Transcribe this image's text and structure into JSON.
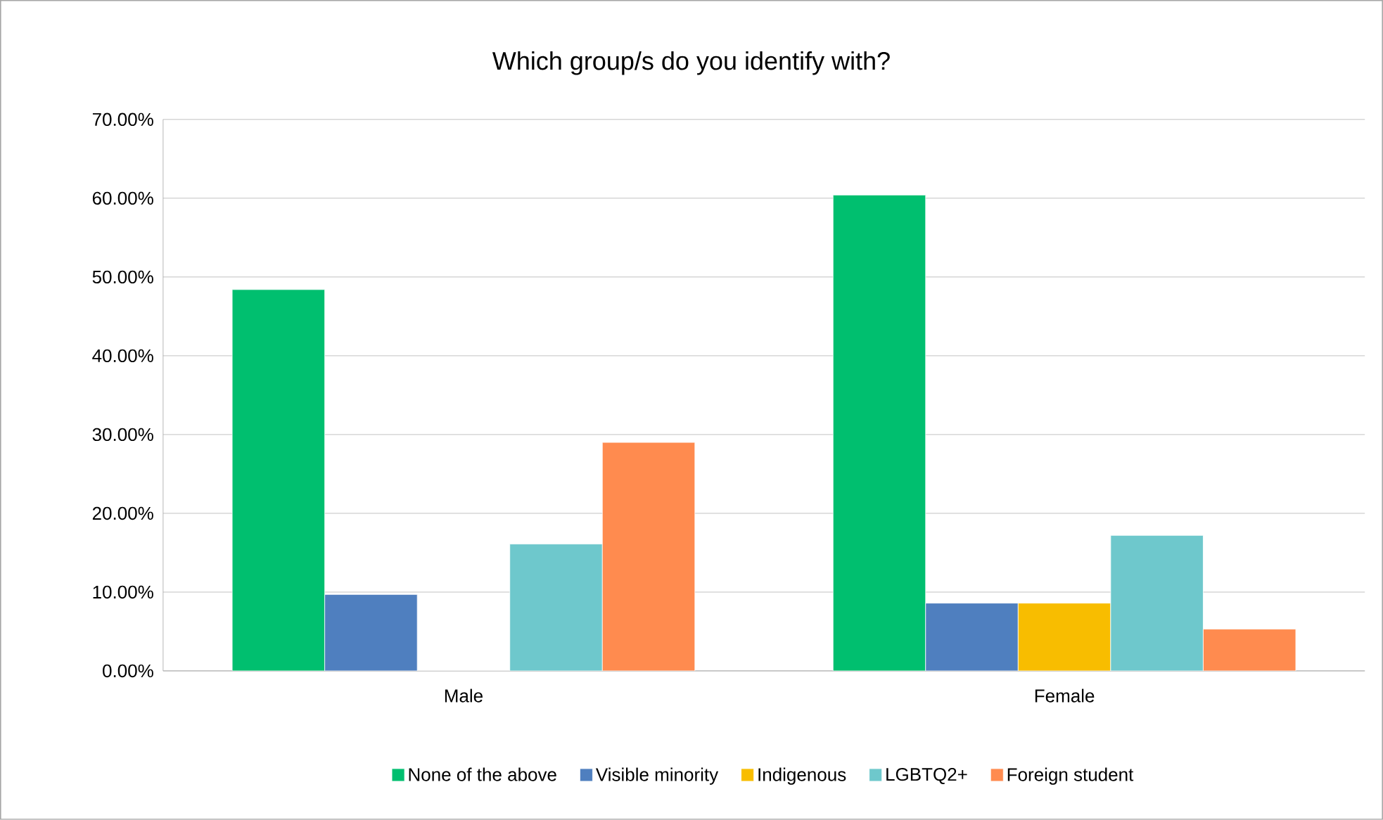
{
  "chart_data": {
    "type": "bar",
    "title": "Which group/s do you identify with?",
    "categories": [
      "Male",
      "Female"
    ],
    "series": [
      {
        "name": "None of the above",
        "color": "#00bf6f",
        "values": [
          48.4,
          60.4
        ]
      },
      {
        "name": "Visible minority",
        "color": "#4f7fbf",
        "values": [
          9.7,
          8.6
        ]
      },
      {
        "name": "Indigenous",
        "color": "#f8bd00",
        "values": [
          0,
          8.6
        ]
      },
      {
        "name": "LGBTQ2+",
        "color": "#6ec8cc",
        "values": [
          16.1,
          17.2
        ]
      },
      {
        "name": "Foreign student",
        "color": "#ff8b4f",
        "values": [
          29.0,
          5.3
        ]
      }
    ],
    "ylim": [
      0,
      70
    ],
    "yticks": [
      {
        "value": 0,
        "label": "0.00%"
      },
      {
        "value": 10,
        "label": "10.00%"
      },
      {
        "value": 20,
        "label": "20.00%"
      },
      {
        "value": 30,
        "label": "30.00%"
      },
      {
        "value": 40,
        "label": "40.00%"
      },
      {
        "value": 50,
        "label": "50.00%"
      },
      {
        "value": 60,
        "label": "60.00%"
      },
      {
        "value": 70,
        "label": "70.00%"
      }
    ],
    "grid": "y",
    "legend": "bottom"
  }
}
